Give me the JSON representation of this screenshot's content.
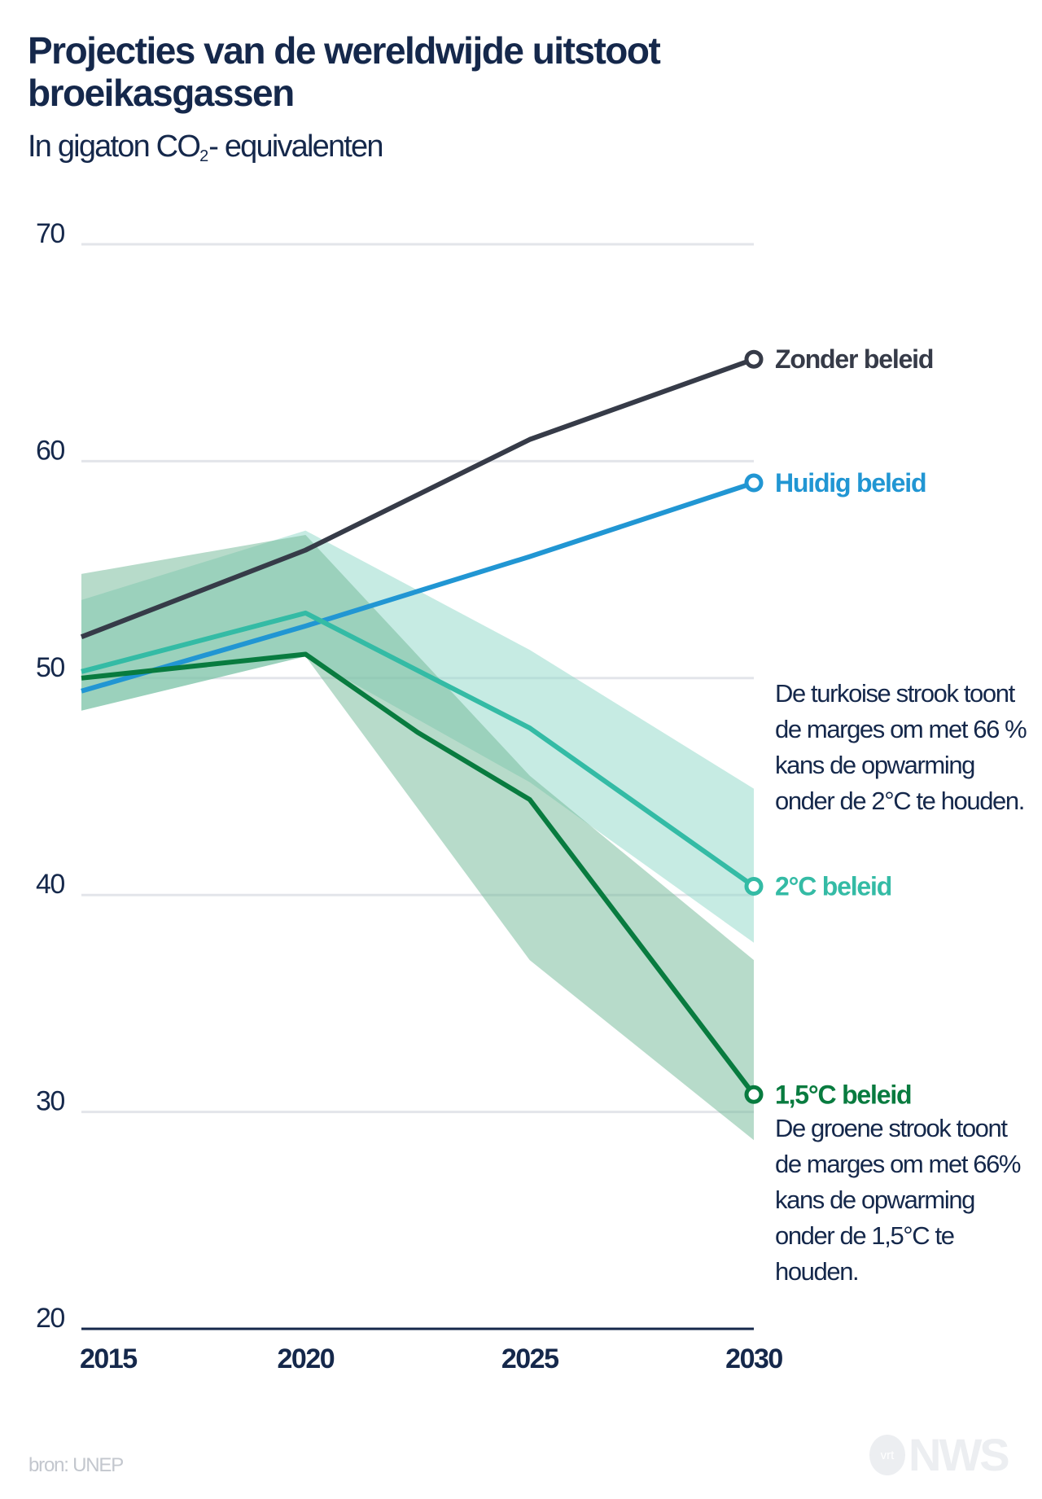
{
  "header": {
    "title": "Projecties van de wereldwijde uitstoot broeikasgassen",
    "subtitle_pre": "In gigaton CO",
    "subtitle_sub": "2",
    "subtitle_post": "- equivalenten"
  },
  "notes": {
    "turquoise": "De turkoise strook toont de marges om met 66 % kans de opwarming onder de 2°C te houden.",
    "green": "De groene strook toont de marges om met 66% kans de opwarming onder de 1,5°C te houden."
  },
  "footer": {
    "source": "bron: UNEP",
    "logo_small": "vrt",
    "logo_big": "NWS"
  },
  "chart_data": {
    "type": "line",
    "title": "Projecties van de wereldwijde uitstoot broeikasgassen",
    "subtitle": "In gigaton CO2- equivalenten",
    "xlabel": "",
    "ylabel": "",
    "xlim": [
      2015,
      2030
    ],
    "ylim": [
      20,
      70
    ],
    "x_ticks": [
      "2015",
      "2020",
      "2025",
      "2030"
    ],
    "y_ticks": [
      "20",
      "30",
      "40",
      "50",
      "60",
      "70"
    ],
    "grid": true,
    "series": [
      {
        "name": "Zonder beleid",
        "color": "#363b48",
        "points": [
          [
            2015,
            51.9
          ],
          [
            2020,
            55.9
          ],
          [
            2025,
            61.0
          ],
          [
            2030,
            64.7
          ]
        ]
      },
      {
        "name": "Huidig beleid",
        "color": "#2196d3",
        "points": [
          [
            2015,
            49.4
          ],
          [
            2020,
            52.4
          ],
          [
            2025,
            55.6
          ],
          [
            2030,
            59.0
          ]
        ]
      },
      {
        "name": "2°C beleid",
        "color": "#34bba5",
        "points": [
          [
            2015,
            50.3
          ],
          [
            2020,
            53.0
          ],
          [
            2025,
            47.7
          ],
          [
            2030,
            40.4
          ]
        ]
      },
      {
        "name": "1,5°C beleid",
        "color": "#087b3f",
        "points": [
          [
            2015,
            50.0
          ],
          [
            2020,
            51.1
          ],
          [
            2022.5,
            47.5
          ],
          [
            2025,
            44.4
          ],
          [
            2030,
            30.8
          ]
        ]
      }
    ],
    "bands": [
      {
        "name": "Turkoise strook (2°C, 66% kans)",
        "color": "#8ed8c8",
        "opacity": 0.5,
        "upper": [
          [
            2015,
            53.6
          ],
          [
            2020,
            56.8
          ],
          [
            2025,
            51.3
          ],
          [
            2030,
            44.9
          ]
        ],
        "lower": [
          [
            2015,
            48.5
          ],
          [
            2020,
            51.0
          ],
          [
            2025,
            45.2
          ],
          [
            2030,
            37.8
          ]
        ]
      },
      {
        "name": "Groene strook (1,5°C, 66% kans)",
        "color": "#6fb895",
        "opacity": 0.5,
        "upper": [
          [
            2015,
            54.8
          ],
          [
            2020,
            56.6
          ],
          [
            2025,
            45.5
          ],
          [
            2030,
            37.0
          ]
        ],
        "lower": [
          [
            2015,
            48.5
          ],
          [
            2020,
            51.0
          ],
          [
            2025,
            37.0
          ],
          [
            2030,
            28.7
          ]
        ]
      }
    ]
  }
}
